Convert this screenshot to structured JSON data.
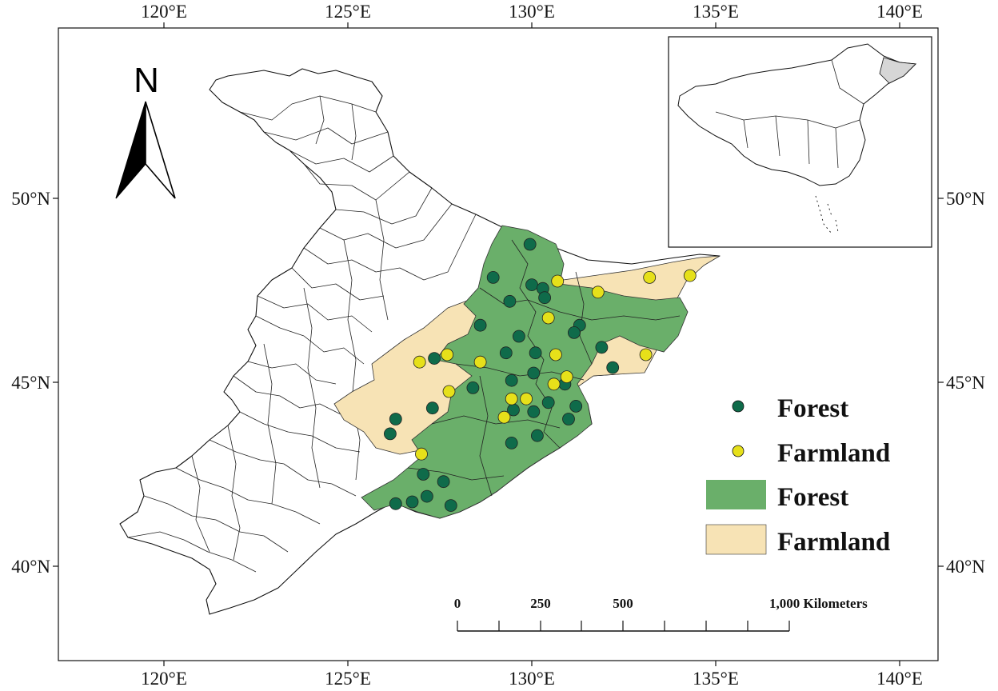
{
  "map": {
    "top_lon_labels": [
      "120°E",
      "125°E",
      "130°E",
      "135°E",
      "140°E"
    ],
    "bottom_lon_labels": [
      "120°E",
      "125°E",
      "130°E",
      "135°E",
      "140°E"
    ],
    "left_lat_labels": [
      "50°N",
      "45°N",
      "40°N"
    ],
    "right_lat_labels": [
      "50°N",
      "45°N",
      "40°N"
    ],
    "north_arrow_label": "N",
    "scale_bar": {
      "labels": [
        "0",
        "250",
        "500",
        "1,000 Kilometers"
      ]
    },
    "legend": {
      "forest_point_label": "Forest",
      "farmland_point_label": "Farmland",
      "forest_area_label": "Forest",
      "farmland_area_label": "Farmland"
    },
    "colors": {
      "forest_point": "#0f6b4a",
      "farmland_point": "#e6e01a",
      "forest_area": "#6aaf6a",
      "farmland_area": "#f7e3b5",
      "inset_highlight": "#d6d6d6"
    },
    "forest_sites": [
      [
        129.95,
        48.75
      ],
      [
        128.95,
        47.85
      ],
      [
        130.0,
        47.65
      ],
      [
        130.3,
        47.55
      ],
      [
        129.4,
        47.2
      ],
      [
        130.35,
        47.3
      ],
      [
        128.6,
        46.55
      ],
      [
        131.3,
        46.55
      ],
      [
        129.65,
        46.25
      ],
      [
        131.15,
        46.35
      ],
      [
        131.9,
        45.95
      ],
      [
        127.35,
        45.65
      ],
      [
        129.3,
        45.8
      ],
      [
        130.1,
        45.8
      ],
      [
        132.2,
        45.4
      ],
      [
        129.45,
        45.05
      ],
      [
        130.05,
        45.25
      ],
      [
        128.4,
        44.85
      ],
      [
        130.9,
        44.95
      ],
      [
        127.3,
        44.3
      ],
      [
        126.3,
        44.0
      ],
      [
        129.5,
        44.25
      ],
      [
        130.45,
        44.45
      ],
      [
        131.2,
        44.35
      ],
      [
        130.05,
        44.2
      ],
      [
        131.0,
        44.0
      ],
      [
        126.15,
        43.6
      ],
      [
        129.45,
        43.35
      ],
      [
        130.15,
        43.55
      ],
      [
        127.05,
        42.5
      ],
      [
        127.6,
        42.3
      ],
      [
        126.75,
        41.75
      ],
      [
        127.15,
        41.9
      ],
      [
        127.8,
        41.65
      ],
      [
        126.3,
        41.7
      ]
    ],
    "farmland_sites": [
      [
        130.7,
        47.75
      ],
      [
        131.8,
        47.45
      ],
      [
        133.2,
        47.85
      ],
      [
        134.3,
        47.9
      ],
      [
        130.45,
        46.75
      ],
      [
        127.7,
        45.75
      ],
      [
        128.6,
        45.55
      ],
      [
        126.95,
        45.55
      ],
      [
        130.65,
        45.75
      ],
      [
        133.1,
        45.75
      ],
      [
        130.95,
        45.15
      ],
      [
        130.6,
        44.95
      ],
      [
        127.75,
        44.75
      ],
      [
        129.45,
        44.55
      ],
      [
        129.85,
        44.55
      ],
      [
        129.25,
        44.05
      ],
      [
        127.0,
        43.05
      ]
    ]
  }
}
